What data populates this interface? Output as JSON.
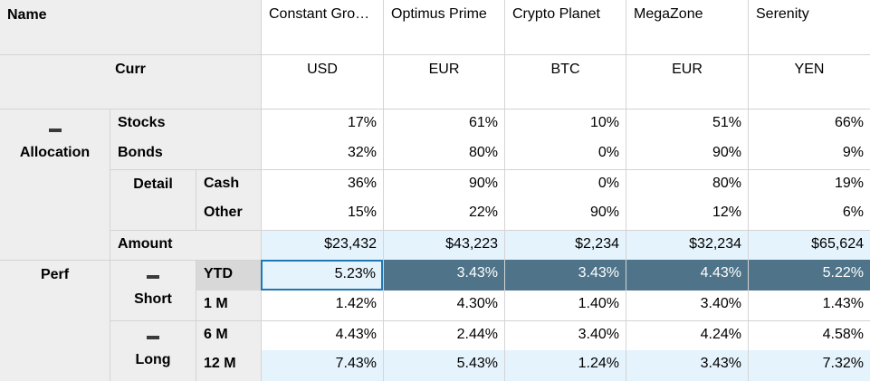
{
  "corner_label": "Name",
  "curr_label": "Curr",
  "columns": [
    {
      "name": "Constant Gro…",
      "curr": "USD"
    },
    {
      "name": "Optimus Prime",
      "curr": "EUR"
    },
    {
      "name": "Crypto Planet",
      "curr": "BTC"
    },
    {
      "name": "MegaZone",
      "curr": "EUR"
    },
    {
      "name": "Serenity",
      "curr": "YEN"
    }
  ],
  "row_headers": {
    "allocation": "Allocation",
    "stocks": "Stocks",
    "bonds": "Bonds",
    "detail": "Detail",
    "cash": "Cash",
    "other": "Other",
    "amount": "Amount",
    "perf": "Perf",
    "short": "Short",
    "ytd": "YTD",
    "one_m": "1 M",
    "long": "Long",
    "six_m": "6 M",
    "twelve_m": "12 M"
  },
  "rows": {
    "stocks": [
      "17%",
      "61%",
      "10%",
      "51%",
      "66%"
    ],
    "bonds": [
      "32%",
      "80%",
      "0%",
      "90%",
      "9%"
    ],
    "cash": [
      "36%",
      "90%",
      "0%",
      "80%",
      "19%"
    ],
    "other": [
      "15%",
      "22%",
      "90%",
      "12%",
      "6%"
    ],
    "amount": [
      "$23,432",
      "$43,223",
      "$2,234",
      "$32,234",
      "$65,624"
    ],
    "ytd": [
      "5.23%",
      "3.43%",
      "3.43%",
      "4.43%",
      "5.22%"
    ],
    "one_m": [
      "1.42%",
      "4.30%",
      "1.40%",
      "3.40%",
      "1.43%"
    ],
    "six_m": [
      "4.43%",
      "2.44%",
      "3.40%",
      "4.24%",
      "4.58%"
    ],
    "twelve_m": [
      "7.43%",
      "5.43%",
      "1.24%",
      "3.43%",
      "7.32%"
    ]
  },
  "colors": {
    "header_bg": "#eeeeee",
    "highlight_bg": "#e5f3fc",
    "selected_bg": "#4f7489",
    "focus_border": "#1f78b4",
    "gridline": "#d4d4d4"
  }
}
